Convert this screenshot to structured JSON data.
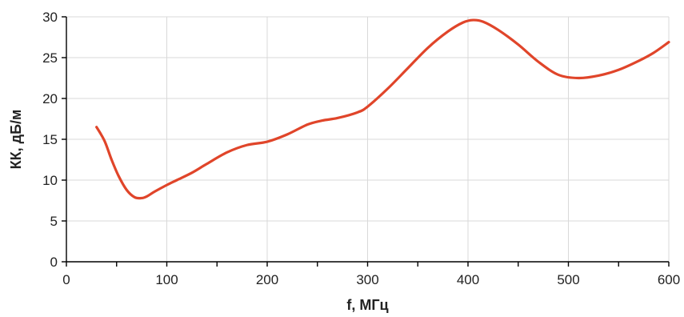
{
  "chart_data": {
    "type": "line",
    "title": "",
    "xlabel": "f, МГц",
    "ylabel": "КК, дБ/м",
    "xlim": [
      0,
      600
    ],
    "ylim": [
      0,
      30
    ],
    "xticks": [
      0,
      100,
      200,
      300,
      400,
      500,
      600
    ],
    "xtick_labels": [
      "0",
      "100",
      "200",
      "300",
      "400",
      "500",
      "600"
    ],
    "yticks": [
      0,
      5,
      10,
      15,
      20,
      25,
      30
    ],
    "ytick_labels": [
      "0",
      "5",
      "10",
      "15",
      "20",
      "25",
      "30"
    ],
    "grid": true,
    "legend": "none",
    "series": [
      {
        "color": "#e0452a",
        "x": [
          30,
          38,
          45,
          52,
          60,
          68,
          75,
          80,
          88,
          100,
          110,
          125,
          140,
          160,
          180,
          200,
          220,
          240,
          255,
          270,
          290,
          300,
          320,
          340,
          360,
          380,
          395,
          405,
          415,
          430,
          450,
          470,
          490,
          510,
          530,
          550,
          570,
          585,
          600
        ],
        "y": [
          16.5,
          14.8,
          12.5,
          10.5,
          8.8,
          7.9,
          7.8,
          8.0,
          8.6,
          9.4,
          10.0,
          10.9,
          12.0,
          13.4,
          14.3,
          14.7,
          15.6,
          16.8,
          17.3,
          17.6,
          18.3,
          19.0,
          21.2,
          23.7,
          26.2,
          28.2,
          29.3,
          29.6,
          29.4,
          28.4,
          26.6,
          24.5,
          22.9,
          22.5,
          22.8,
          23.5,
          24.6,
          25.6,
          26.9
        ]
      }
    ]
  }
}
